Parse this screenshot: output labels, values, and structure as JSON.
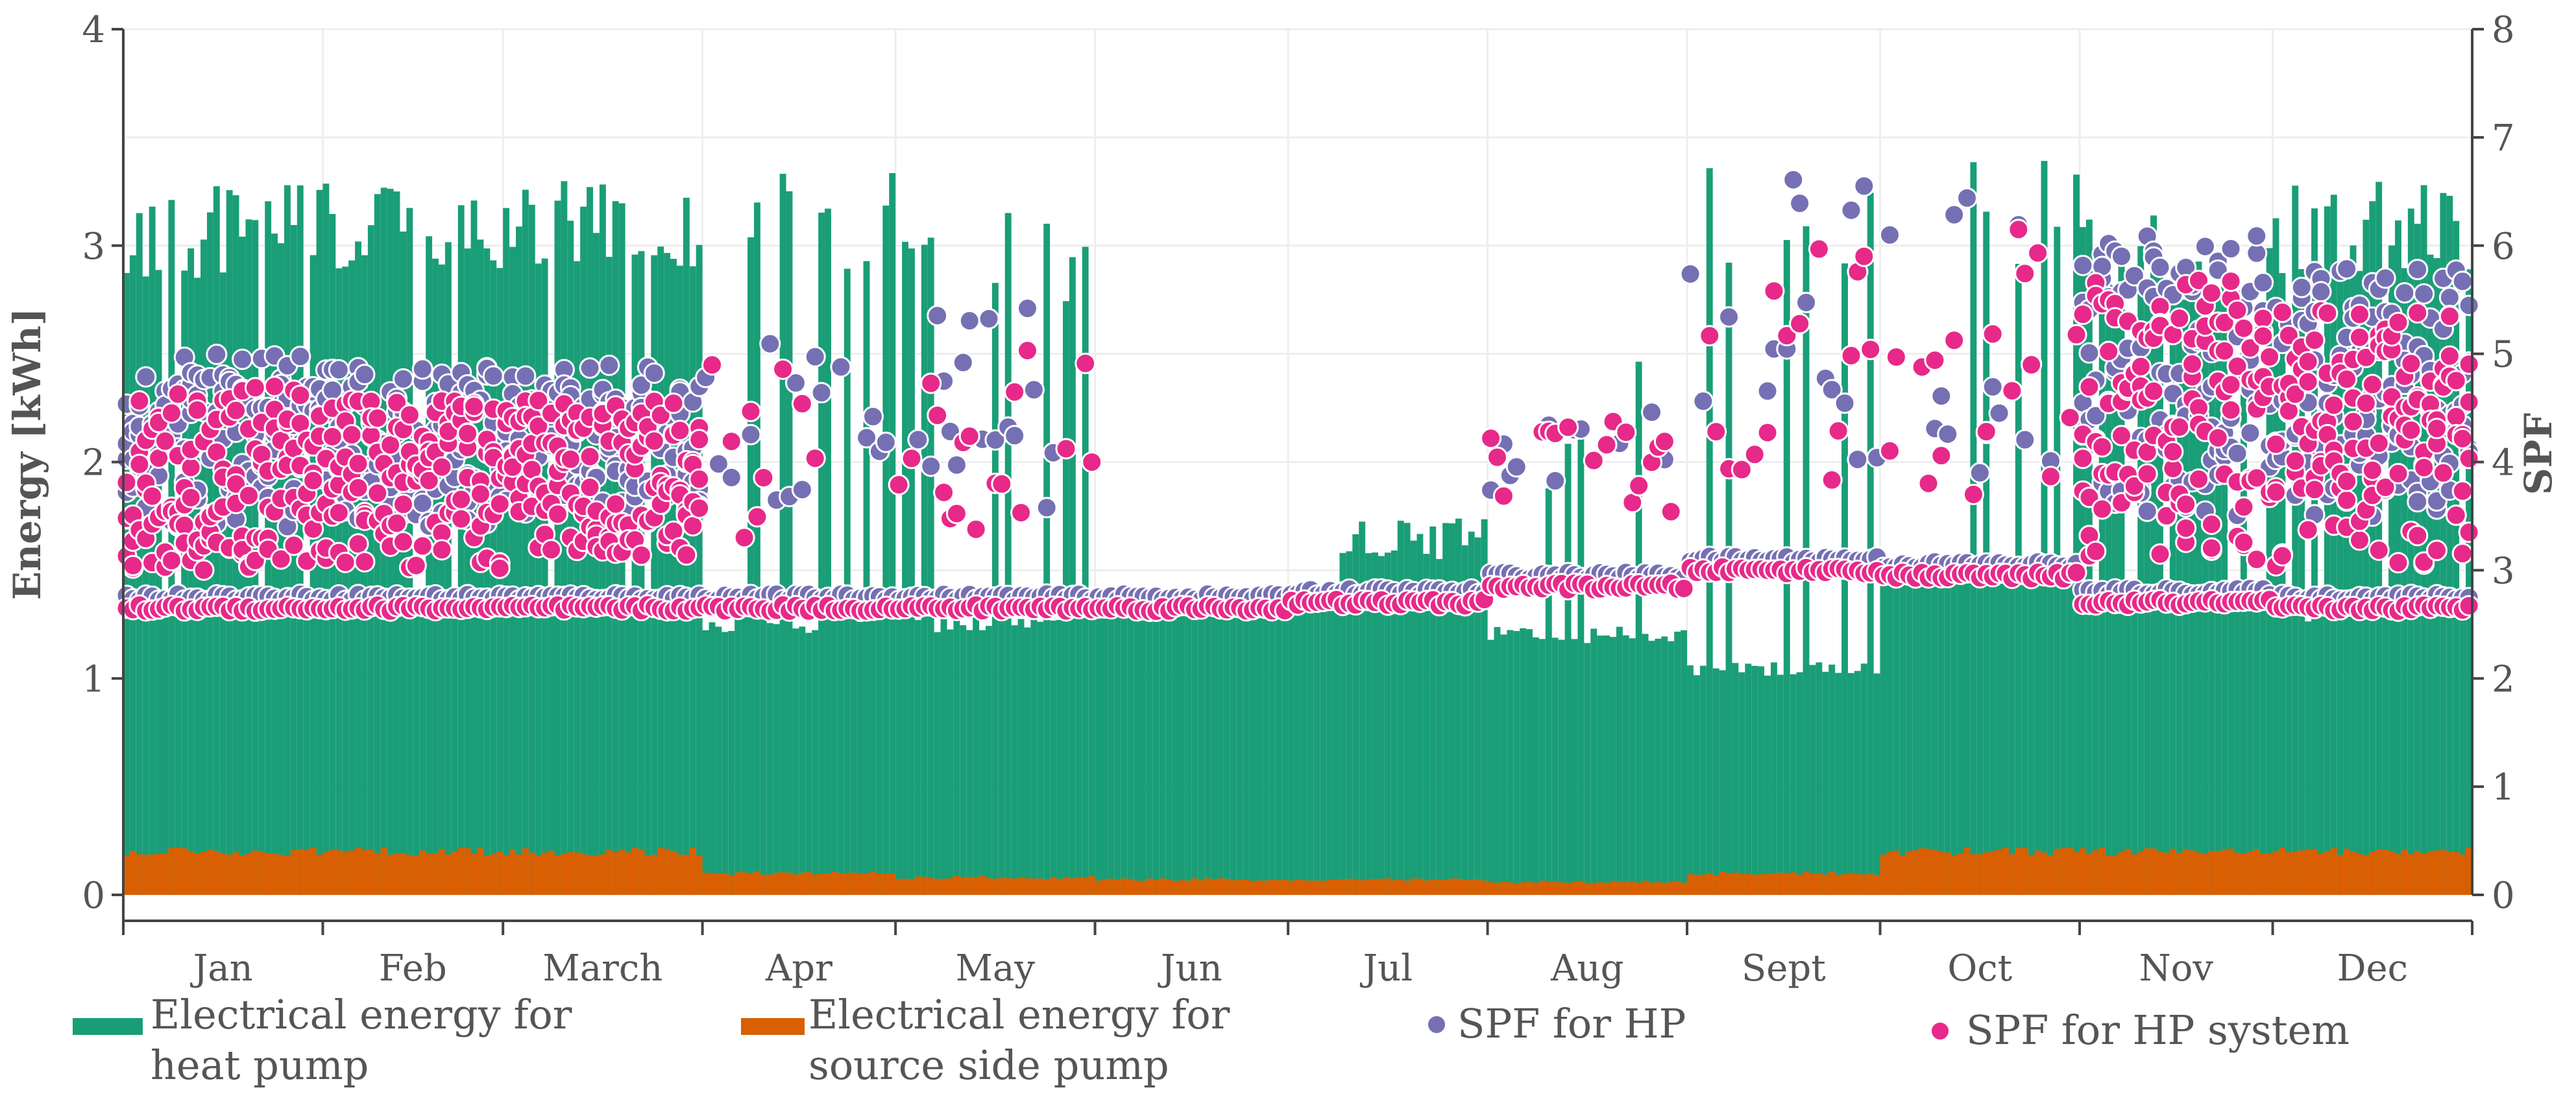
{
  "chart_data": {
    "type": "bar",
    "title": "",
    "x_months": [
      "Jan",
      "Feb",
      "March",
      "Apr",
      "May",
      "Jun",
      "Jul",
      "Aug",
      "Sept",
      "Oct",
      "Nov",
      "Dec"
    ],
    "x_days_range": [
      0,
      365
    ],
    "y_left": {
      "label": "Energy [kWh]",
      "ylim": [
        0,
        4
      ],
      "ticks": [
        0,
        1,
        2,
        3,
        4
      ]
    },
    "y_right": {
      "label": "SPF",
      "ylim": [
        0,
        8
      ],
      "ticks": [
        0,
        1,
        2,
        3,
        4,
        5,
        6,
        7,
        8
      ]
    },
    "grid": true,
    "legend_position": "bottom",
    "series": [
      {
        "name": "Electrical energy for heat pump",
        "type": "bar",
        "axis": "left",
        "color": "#1a9e77",
        "monthly_base_kwh": [
          1.3,
          1.3,
          1.3,
          1.25,
          1.25,
          1.3,
          1.35,
          1.2,
          1.05,
          1.5,
          1.4,
          1.3
        ],
        "monthly_peak_kwh": [
          3.3,
          3.3,
          3.3,
          3.35,
          3.2,
          1.35,
          1.75,
          2.75,
          3.4,
          3.4,
          3.15,
          3.3
        ]
      },
      {
        "name": "Electrical energy for source side pump",
        "type": "bar",
        "axis": "left",
        "color": "#d95f02",
        "monthly_kwh": [
          0.2,
          0.2,
          0.2,
          0.1,
          0.08,
          0.07,
          0.07,
          0.06,
          0.1,
          0.2,
          0.2,
          0.2
        ]
      },
      {
        "name": "SPF for HP",
        "type": "scatter",
        "axis": "right",
        "color": "#7570b3",
        "monthly_baseline": [
          2.75,
          2.75,
          2.75,
          2.75,
          2.75,
          2.75,
          2.8,
          2.95,
          3.1,
          3.05,
          2.8,
          2.75
        ],
        "monthly_band": [
          [
            3.4,
            5.0
          ],
          [
            3.4,
            4.9
          ],
          [
            3.5,
            4.9
          ],
          [
            3.5,
            5.1
          ],
          [
            3.4,
            5.6
          ],
          null,
          null,
          [
            3.6,
            4.6
          ],
          [
            3.9,
            6.7
          ],
          [
            3.8,
            6.6
          ],
          [
            3.5,
            6.1
          ],
          [
            3.5,
            5.8
          ]
        ]
      },
      {
        "name": "SPF for HP system",
        "type": "scatter",
        "axis": "right",
        "color": "#e7298a",
        "monthly_baseline": [
          2.65,
          2.65,
          2.65,
          2.65,
          2.65,
          2.65,
          2.7,
          2.85,
          3.0,
          2.95,
          2.7,
          2.65
        ],
        "monthly_band": [
          [
            3.0,
            4.7
          ],
          [
            3.0,
            4.6
          ],
          [
            3.1,
            4.6
          ],
          [
            3.2,
            4.9
          ],
          [
            3.3,
            5.2
          ],
          null,
          null,
          [
            3.5,
            4.4
          ],
          [
            3.8,
            6.2
          ],
          [
            3.7,
            6.2
          ],
          [
            3.1,
            5.7
          ],
          [
            3.0,
            5.4
          ]
        ]
      }
    ]
  },
  "legend": {
    "hp_energy_line1": "Electrical energy for",
    "hp_energy_line2": "heat pump",
    "source_pump_line1": "Electrical energy for",
    "source_pump_line2": "source side pump",
    "spf_hp": "SPF for HP",
    "spf_system": "SPF for HP system"
  }
}
